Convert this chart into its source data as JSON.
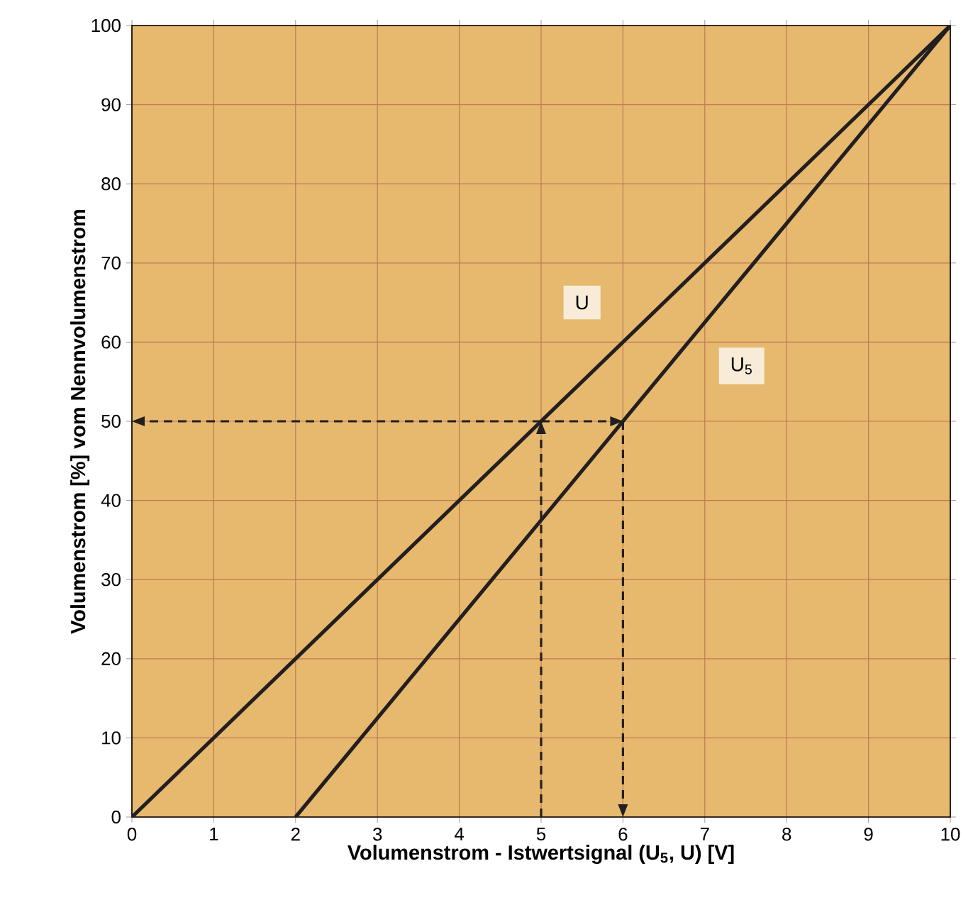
{
  "chart_data": {
    "type": "line",
    "xlabel": "Volumenstrom - Istwertsignal (U$_{5}$, U) [V]",
    "ylabel": "Volumenstrom [%] vom Nennvolumenstrom",
    "xlim": [
      0,
      10
    ],
    "xticks": [
      0,
      1,
      2,
      3,
      4,
      5,
      6,
      7,
      8,
      9,
      10
    ],
    "ylim": [
      0,
      100
    ],
    "yticks": [
      0,
      10,
      20,
      30,
      40,
      50,
      60,
      70,
      80,
      90,
      100
    ],
    "grid": true,
    "series": [
      {
        "name": "U",
        "color": "#231f20",
        "x": [
          0,
          10
        ],
        "values": [
          0,
          100
        ]
      },
      {
        "name": "U$_{5}$",
        "color": "#231f20",
        "x": [
          2,
          10
        ],
        "values": [
          0,
          100
        ]
      },
      {
        "color": "#231f20",
        "line_style": "dashed",
        "x": [
          5,
          5
        ],
        "values": [
          0,
          50
        ]
      },
      {
        "color": "#231f20",
        "line_style": "dashed",
        "x": [
          5,
          0
        ],
        "values": [
          50,
          50
        ]
      },
      {
        "color": "#231f20",
        "line_style": "dashed",
        "x": [
          5,
          6
        ],
        "values": [
          50,
          50
        ]
      },
      {
        "color": "#231f20",
        "line_style": "dashed",
        "x": [
          6,
          6
        ],
        "values": [
          50,
          0
        ]
      }
    ]
  }
}
